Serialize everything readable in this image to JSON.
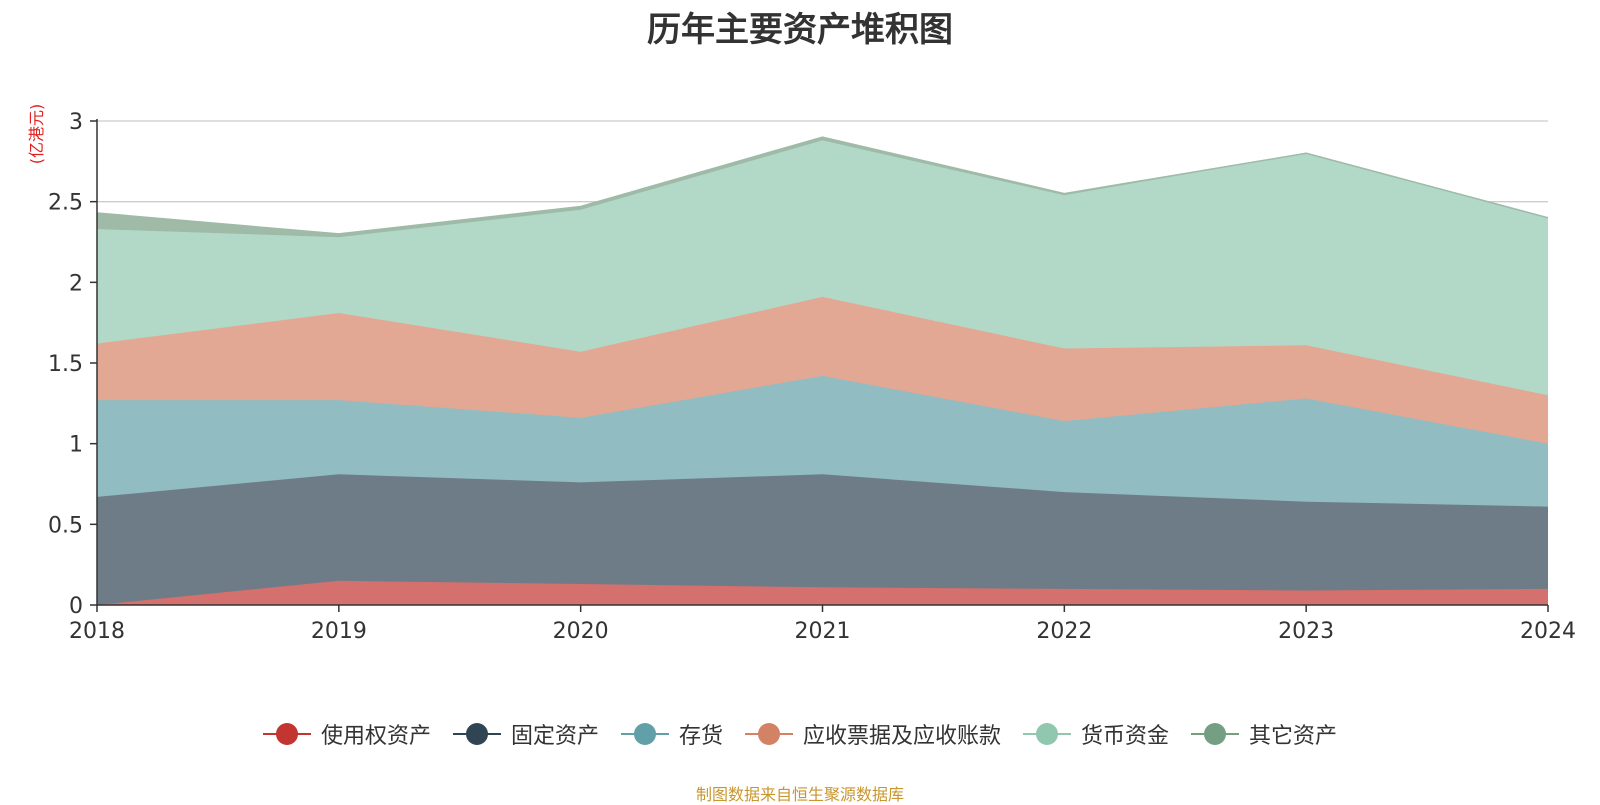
{
  "chart_data": {
    "type": "area",
    "stacked": true,
    "title": "历年主要资产堆积图",
    "y_unit": "(亿港元)",
    "x": [
      "2018",
      "2019",
      "2020",
      "2021",
      "2022",
      "2023",
      "2024"
    ],
    "y_ticks": [
      "0",
      "0.5",
      "1",
      "1.5",
      "2",
      "2.5",
      "3"
    ],
    "ylim": [
      0,
      3
    ],
    "grid": true,
    "legend_position": "bottom",
    "series": [
      {
        "name": "使用权资产",
        "color": "#c23531",
        "fill": "#d4706d",
        "values": [
          0.0,
          0.15,
          0.13,
          0.11,
          0.1,
          0.09,
          0.1
        ]
      },
      {
        "name": "固定资产",
        "color": "#2f4554",
        "fill": "#6e7c87",
        "values": [
          0.67,
          0.66,
          0.63,
          0.7,
          0.6,
          0.55,
          0.51
        ]
      },
      {
        "name": "存货",
        "color": "#61a0a8",
        "fill": "#91bcc2",
        "values": [
          0.6,
          0.46,
          0.4,
          0.61,
          0.44,
          0.64,
          0.39
        ]
      },
      {
        "name": "应收票据及应收账款",
        "color": "#d48265",
        "fill": "#e2a893",
        "values": [
          0.35,
          0.54,
          0.41,
          0.49,
          0.45,
          0.33,
          0.3
        ]
      },
      {
        "name": "货币资金",
        "color": "#91c7ae",
        "fill": "#b2d9c7",
        "values": [
          0.71,
          0.47,
          0.88,
          0.97,
          0.95,
          1.19,
          1.1
        ]
      },
      {
        "name": "其它资产",
        "color": "#749f83",
        "fill": "#9fbba8",
        "values": [
          0.1,
          0.02,
          0.02,
          0.02,
          0.01,
          0.0,
          0.0
        ]
      }
    ],
    "source": "制图数据来自恒生聚源数据库"
  }
}
